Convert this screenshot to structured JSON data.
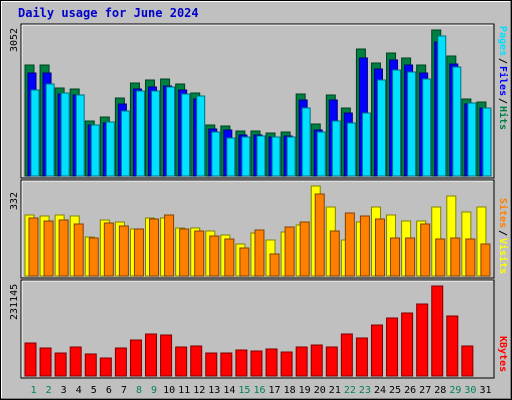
{
  "chart_data": {
    "title": "Daily usage for June 2024",
    "x": [
      "1",
      "2",
      "3",
      "4",
      "5",
      "6",
      "7",
      "8",
      "9",
      "10",
      "11",
      "12",
      "13",
      "14",
      "15",
      "16",
      "17",
      "18",
      "19",
      "20",
      "21",
      "22",
      "23",
      "24",
      "25",
      "26",
      "27",
      "28",
      "29",
      "30",
      "31"
    ],
    "weekend_days": [
      "1",
      "2",
      "8",
      "9",
      "15",
      "16",
      "22",
      "23",
      "29",
      "30"
    ],
    "colors": {
      "weekday_label": "#000000",
      "weekend_label": "#00805c",
      "title": "#0000cc",
      "hits": "#008040",
      "files": "#0000ff",
      "pages": "#00e0ff",
      "visits": "#ffff00",
      "sites": "#ff8000",
      "kbytes": "#ff0000",
      "panel": "#c0c0c0"
    },
    "panels": [
      {
        "type": "bar",
        "ymax_label": "3052",
        "ylim": [
          0,
          3052
        ],
        "right_labels": [
          {
            "text": "Hits",
            "color": "#008040"
          },
          {
            "text": "Files",
            "color": "#0000ff"
          },
          {
            "text": "Pages",
            "color": "#00e0ff"
          }
        ],
        "separator": "/",
        "series": [
          {
            "name": "Hits",
            "values": [
              2325,
              2325,
              1842,
              1809,
              1149,
              1236,
              1633,
              1941,
              2009,
              2027,
              1930,
              1736,
              1063,
              1046,
              942,
              942,
              898,
              923,
              1712,
              1079,
              1703,
              1427,
              2653,
              2367,
              2564,
              2473,
              2317,
              3052,
              2505,
              1620,
              1544
            ]
          },
          {
            "name": "Files",
            "values": [
              2161,
              2161,
              1714,
              1687,
              1056,
              1102,
              1512,
              1810,
              1864,
              1882,
              1806,
              1617,
              974,
              955,
              850,
              850,
              813,
              834,
              1598,
              958,
              1590,
              1317,
              2457,
              2230,
              2417,
              2325,
              2161,
              2797,
              2345,
              1497,
              1426
            ]
          },
          {
            "name": "Pages",
            "values": [
              1806,
              1914,
              1736,
              1701,
              1062,
              1129,
              1350,
              1773,
              1767,
              1858,
              1717,
              1680,
              923,
              801,
              805,
              841,
              805,
              812,
              1420,
              917,
              1152,
              1112,
              1322,
              2016,
              2212,
              2170,
              2036,
              2918,
              2287,
              1536,
              1422
            ]
          }
        ]
      },
      {
        "type": "bar",
        "ymax_label": "332",
        "ylim": [
          0,
          332
        ],
        "right_labels": [
          {
            "text": "Visits",
            "color": "#ffff00"
          },
          {
            "text": "Sites",
            "color": "#ff8000"
          }
        ],
        "separator": "/",
        "series": [
          {
            "name": "Visits",
            "values": [
              225,
              221,
              225,
              221,
              144,
              207,
              198,
              174,
              215,
              214,
              178,
              178,
              165,
              151,
              119,
              158,
              134,
              161,
              189,
              332,
              255,
              134,
              198,
              253,
              226,
              204,
              204,
              255,
              295,
              235,
              255
            ]
          },
          {
            "name": "Sites",
            "values": [
              215,
              202,
              207,
              191,
              140,
              195,
              185,
              174,
              212,
              226,
              174,
              166,
              148,
              136,
              104,
              169,
              82,
              182,
              199,
              304,
              165,
              232,
              220,
              211,
              141,
              139,
              190,
              135,
              142,
              138,
              117
            ]
          }
        ]
      },
      {
        "type": "bar",
        "ymax_label": "231145",
        "ylim": [
          0,
          231145
        ],
        "right_labels": [
          {
            "text": "KBytes",
            "color": "#ff0000"
          }
        ],
        "separator": "",
        "series": [
          {
            "name": "KBytes",
            "values": [
              85000,
              72000,
              58000,
              74000,
              57000,
              47000,
              71000,
              92000,
              108000,
              105000,
              75000,
              78000,
              60000,
              59000,
              67000,
              63000,
              69000,
              61000,
              75000,
              80000,
              74000,
              107000,
              97000,
              131000,
              150000,
              163000,
              184000,
              231145,
              153000,
              78000,
              0
            ]
          }
        ]
      }
    ]
  }
}
